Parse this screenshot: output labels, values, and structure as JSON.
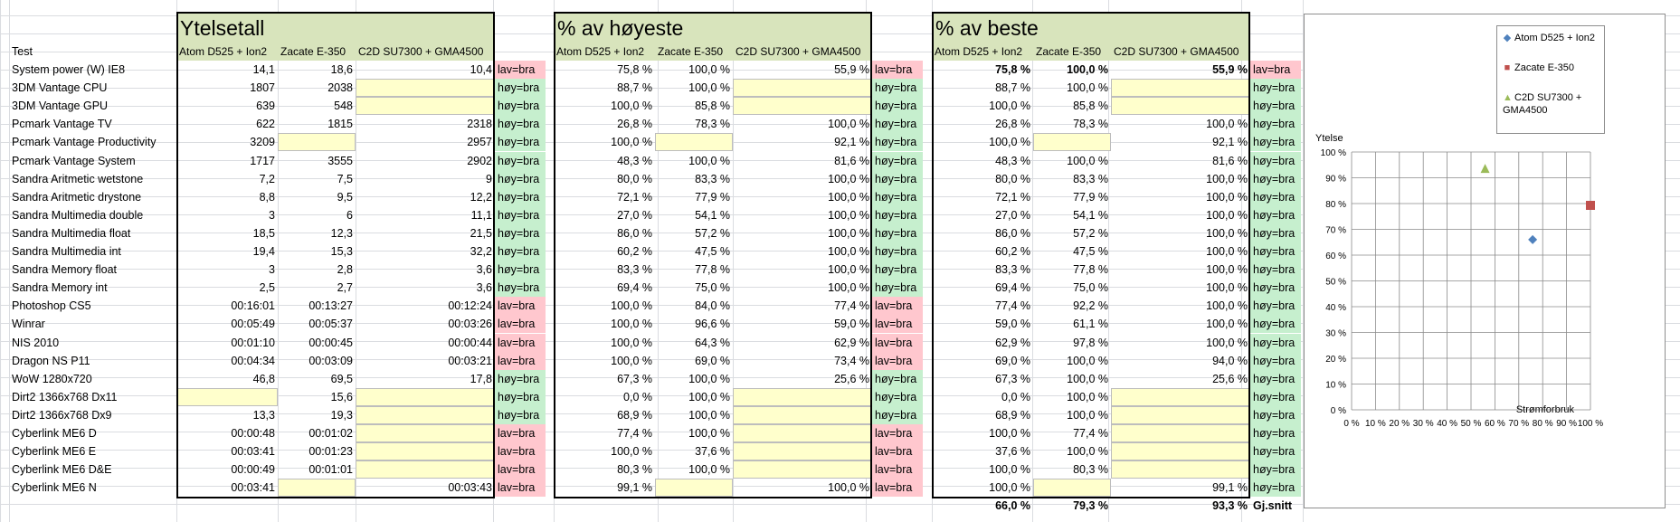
{
  "sections": {
    "ytelsetall": "Ytelsetall",
    "pct_hoyeste": "% av høyeste",
    "pct_beste": "% av beste"
  },
  "headers": {
    "test": "Test",
    "col1": "Atom D525 + Ion2",
    "col2": "Zacate E-350",
    "col3": "C2D SU7300 + GMA4500"
  },
  "rows": [
    {
      "name": "System power (W) IE8",
      "v": [
        "14,1",
        "18,6",
        "10,4"
      ],
      "tag": "lav=bra",
      "h": [
        "75,8 %",
        "100,0 %",
        "55,9 %"
      ],
      "tag2": "lav=bra",
      "b": [
        "75,8 %",
        "100,0 %",
        "55,9 %"
      ],
      "tag3": "lav=bra"
    },
    {
      "name": "3DM Vantage CPU",
      "v": [
        "1807",
        "2038",
        ""
      ],
      "tag": "høy=bra",
      "h": [
        "88,7 %",
        "100,0 %",
        ""
      ],
      "tag2": "høy=bra",
      "b": [
        "88,7 %",
        "100,0 %",
        ""
      ],
      "tag3": "høy=bra"
    },
    {
      "name": "3DM Vantage GPU",
      "v": [
        "639",
        "548",
        ""
      ],
      "tag": "høy=bra",
      "h": [
        "100,0 %",
        "85,8 %",
        ""
      ],
      "tag2": "høy=bra",
      "b": [
        "100,0 %",
        "85,8 %",
        ""
      ],
      "tag3": "høy=bra"
    },
    {
      "name": "Pcmark Vantage TV",
      "v": [
        "622",
        "1815",
        "2318"
      ],
      "tag": "høy=bra",
      "h": [
        "26,8 %",
        "78,3 %",
        "100,0 %"
      ],
      "tag2": "høy=bra",
      "b": [
        "26,8 %",
        "78,3 %",
        "100,0 %"
      ],
      "tag3": "høy=bra"
    },
    {
      "name": "Pcmark Vantage Productivity",
      "v": [
        "3209",
        "",
        "2957"
      ],
      "tag": "høy=bra",
      "h": [
        "100,0 %",
        "",
        "92,1 %"
      ],
      "tag2": "høy=bra",
      "b": [
        "100,0 %",
        "",
        "92,1 %"
      ],
      "tag3": "høy=bra"
    },
    {
      "name": "Pcmark Vantage System",
      "v": [
        "1717",
        "3555",
        "2902"
      ],
      "tag": "høy=bra",
      "h": [
        "48,3 %",
        "100,0 %",
        "81,6 %"
      ],
      "tag2": "høy=bra",
      "b": [
        "48,3 %",
        "100,0 %",
        "81,6 %"
      ],
      "tag3": "høy=bra"
    },
    {
      "name": "Sandra Aritmetic wetstone",
      "v": [
        "7,2",
        "7,5",
        "9"
      ],
      "tag": "høy=bra",
      "h": [
        "80,0 %",
        "83,3 %",
        "100,0 %"
      ],
      "tag2": "høy=bra",
      "b": [
        "80,0 %",
        "83,3 %",
        "100,0 %"
      ],
      "tag3": "høy=bra"
    },
    {
      "name": "Sandra Aritmetic drystone",
      "v": [
        "8,8",
        "9,5",
        "12,2"
      ],
      "tag": "høy=bra",
      "h": [
        "72,1 %",
        "77,9 %",
        "100,0 %"
      ],
      "tag2": "høy=bra",
      "b": [
        "72,1 %",
        "77,9 %",
        "100,0 %"
      ],
      "tag3": "høy=bra"
    },
    {
      "name": "Sandra Multimedia double",
      "v": [
        "3",
        "6",
        "11,1"
      ],
      "tag": "høy=bra",
      "h": [
        "27,0 %",
        "54,1 %",
        "100,0 %"
      ],
      "tag2": "høy=bra",
      "b": [
        "27,0 %",
        "54,1 %",
        "100,0 %"
      ],
      "tag3": "høy=bra"
    },
    {
      "name": "Sandra Multimedia float",
      "v": [
        "18,5",
        "12,3",
        "21,5"
      ],
      "tag": "høy=bra",
      "h": [
        "86,0 %",
        "57,2 %",
        "100,0 %"
      ],
      "tag2": "høy=bra",
      "b": [
        "86,0 %",
        "57,2 %",
        "100,0 %"
      ],
      "tag3": "høy=bra"
    },
    {
      "name": "Sandra Multimedia int",
      "v": [
        "19,4",
        "15,3",
        "32,2"
      ],
      "tag": "høy=bra",
      "h": [
        "60,2 %",
        "47,5 %",
        "100,0 %"
      ],
      "tag2": "høy=bra",
      "b": [
        "60,2 %",
        "47,5 %",
        "100,0 %"
      ],
      "tag3": "høy=bra"
    },
    {
      "name": "Sandra Memory float",
      "v": [
        "3",
        "2,8",
        "3,6"
      ],
      "tag": "høy=bra",
      "h": [
        "83,3 %",
        "77,8 %",
        "100,0 %"
      ],
      "tag2": "høy=bra",
      "b": [
        "83,3 %",
        "77,8 %",
        "100,0 %"
      ],
      "tag3": "høy=bra"
    },
    {
      "name": "Sandra Memory int",
      "v": [
        "2,5",
        "2,7",
        "3,6"
      ],
      "tag": "høy=bra",
      "h": [
        "69,4 %",
        "75,0 %",
        "100,0 %"
      ],
      "tag2": "høy=bra",
      "b": [
        "69,4 %",
        "75,0 %",
        "100,0 %"
      ],
      "tag3": "høy=bra"
    },
    {
      "name": "Photoshop CS5",
      "v": [
        "00:16:01",
        "00:13:27",
        "00:12:24"
      ],
      "tag": "lav=bra",
      "h": [
        "100,0 %",
        "84,0 %",
        "77,4 %"
      ],
      "tag2": "lav=bra",
      "b": [
        "77,4 %",
        "92,2 %",
        "100,0 %"
      ],
      "tag3": "høy=bra"
    },
    {
      "name": "Winrar",
      "v": [
        "00:05:49",
        "00:05:37",
        "00:03:26"
      ],
      "tag": "lav=bra",
      "h": [
        "100,0 %",
        "96,6 %",
        "59,0 %"
      ],
      "tag2": "lav=bra",
      "b": [
        "59,0 %",
        "61,1 %",
        "100,0 %"
      ],
      "tag3": "høy=bra"
    },
    {
      "name": "NIS 2010",
      "v": [
        "00:01:10",
        "00:00:45",
        "00:00:44"
      ],
      "tag": "lav=bra",
      "h": [
        "100,0 %",
        "64,3 %",
        "62,9 %"
      ],
      "tag2": "lav=bra",
      "b": [
        "62,9 %",
        "97,8 %",
        "100,0 %"
      ],
      "tag3": "høy=bra"
    },
    {
      "name": "Dragon NS P11",
      "v": [
        "00:04:34",
        "00:03:09",
        "00:03:21"
      ],
      "tag": "lav=bra",
      "h": [
        "100,0 %",
        "69,0 %",
        "73,4 %"
      ],
      "tag2": "lav=bra",
      "b": [
        "69,0 %",
        "100,0 %",
        "94,0 %"
      ],
      "tag3": "høy=bra"
    },
    {
      "name": "WoW 1280x720",
      "v": [
        "46,8",
        "69,5",
        "17,8"
      ],
      "tag": "høy=bra",
      "h": [
        "67,3 %",
        "100,0 %",
        "25,6 %"
      ],
      "tag2": "høy=bra",
      "b": [
        "67,3 %",
        "100,0 %",
        "25,6 %"
      ],
      "tag3": "høy=bra"
    },
    {
      "name": "Dirt2 1366x768 Dx11",
      "v": [
        "",
        "15,6",
        ""
      ],
      "tag": "høy=bra",
      "h": [
        "0,0 %",
        "100,0 %",
        ""
      ],
      "tag2": "høy=bra",
      "b": [
        "0,0 %",
        "100,0 %",
        ""
      ],
      "tag3": "høy=bra"
    },
    {
      "name": "Dirt2 1366x768 Dx9",
      "v": [
        "13,3",
        "19,3",
        ""
      ],
      "tag": "høy=bra",
      "h": [
        "68,9 %",
        "100,0 %",
        ""
      ],
      "tag2": "høy=bra",
      "b": [
        "68,9 %",
        "100,0 %",
        ""
      ],
      "tag3": "høy=bra"
    },
    {
      "name": "Cyberlink ME6 D",
      "v": [
        "00:00:48",
        "00:01:02",
        ""
      ],
      "tag": "lav=bra",
      "h": [
        "77,4 %",
        "100,0 %",
        ""
      ],
      "tag2": "lav=bra",
      "b": [
        "100,0 %",
        "77,4 %",
        ""
      ],
      "tag3": "høy=bra"
    },
    {
      "name": "Cyberlink ME6 E",
      "v": [
        "00:03:41",
        "00:01:23",
        ""
      ],
      "tag": "lav=bra",
      "h": [
        "100,0 %",
        "37,6 %",
        ""
      ],
      "tag2": "lav=bra",
      "b": [
        "37,6 %",
        "100,0 %",
        ""
      ],
      "tag3": "høy=bra"
    },
    {
      "name": "Cyberlink ME6 D&E",
      "v": [
        "00:00:49",
        "00:01:01",
        ""
      ],
      "tag": "lav=bra",
      "h": [
        "80,3 %",
        "100,0 %",
        ""
      ],
      "tag2": "lav=bra",
      "b": [
        "100,0 %",
        "80,3 %",
        ""
      ],
      "tag3": "høy=bra"
    },
    {
      "name": "Cyberlink ME6 N",
      "v": [
        "00:03:41",
        "",
        "00:03:43"
      ],
      "tag": "lav=bra",
      "h": [
        "99,1 %",
        "",
        "100,0 %"
      ],
      "tag2": "lav=bra",
      "b": [
        "100,0 %",
        "",
        "99,1 %"
      ],
      "tag3": "høy=bra"
    }
  ],
  "summary": {
    "values": [
      "66,0 %",
      "79,3 %",
      "93,3 %"
    ],
    "label": "Gj.snitt"
  },
  "colors": {
    "header_bg": "#d8e4bc",
    "green": "#c6efce",
    "red": "#ffc7ce",
    "yellow": "#ffffcc"
  },
  "chart_data": {
    "type": "scatter",
    "ylabel": "Ytelse",
    "xlabel": "Strømforbruk",
    "xlim": [
      0,
      1
    ],
    "ylim": [
      0,
      1
    ],
    "x_ticks": [
      "0 %",
      "10 %",
      "20 %",
      "30 %",
      "40 %",
      "50 %",
      "60 %",
      "70 %",
      "80 %",
      "90 %",
      "100 %"
    ],
    "y_ticks": [
      "0 %",
      "10 %",
      "20 %",
      "30 %",
      "40 %",
      "50 %",
      "60 %",
      "70 %",
      "80 %",
      "90 %",
      "100 %"
    ],
    "legend_position": "top-right",
    "grid": true,
    "series": [
      {
        "name": "Atom D525 + Ion2",
        "x": [
          0.758
        ],
        "y": [
          0.66
        ],
        "color": "#4f81bd",
        "marker": "diamond"
      },
      {
        "name": "Zacate E-350",
        "x": [
          1.0
        ],
        "y": [
          0.793
        ],
        "color": "#c0504d",
        "marker": "square"
      },
      {
        "name": "C2D SU7300 + GMA4500",
        "x": [
          0.559
        ],
        "y": [
          0.933
        ],
        "color": "#9bbb59",
        "marker": "triangle"
      }
    ]
  }
}
